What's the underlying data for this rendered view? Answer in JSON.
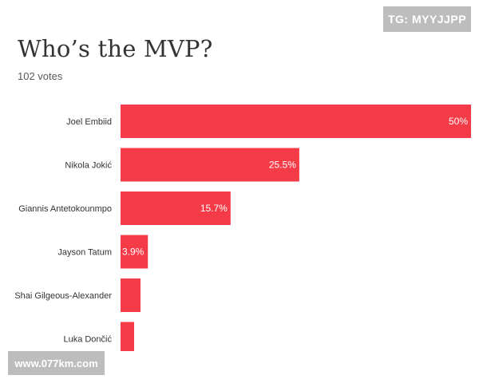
{
  "tag_label": "TG: MYYJJPP",
  "watermark": "www.077km.com",
  "colors": {
    "bar": "#f53b47",
    "bar_label_inside": "#ffffff",
    "category_label": "#333333"
  },
  "chart_data": {
    "type": "bar",
    "orientation": "horizontal",
    "title": "Who’s the MVP?",
    "subtitle": "102 votes",
    "categories": [
      "Joel Embiid",
      "Nikola Jokić",
      "Giannis Antetokounmpo",
      "Jayson Tatum",
      "Shai Gilgeous-Alexander",
      "Luka Dončić"
    ],
    "values": [
      50,
      25.5,
      15.7,
      3.9,
      null,
      null
    ],
    "value_labels": [
      "50%",
      "25.5%",
      "15.7%",
      "3.9%",
      "",
      ""
    ],
    "xlim": [
      0,
      50
    ],
    "unit": "%",
    "grid": false,
    "legend": "none"
  }
}
